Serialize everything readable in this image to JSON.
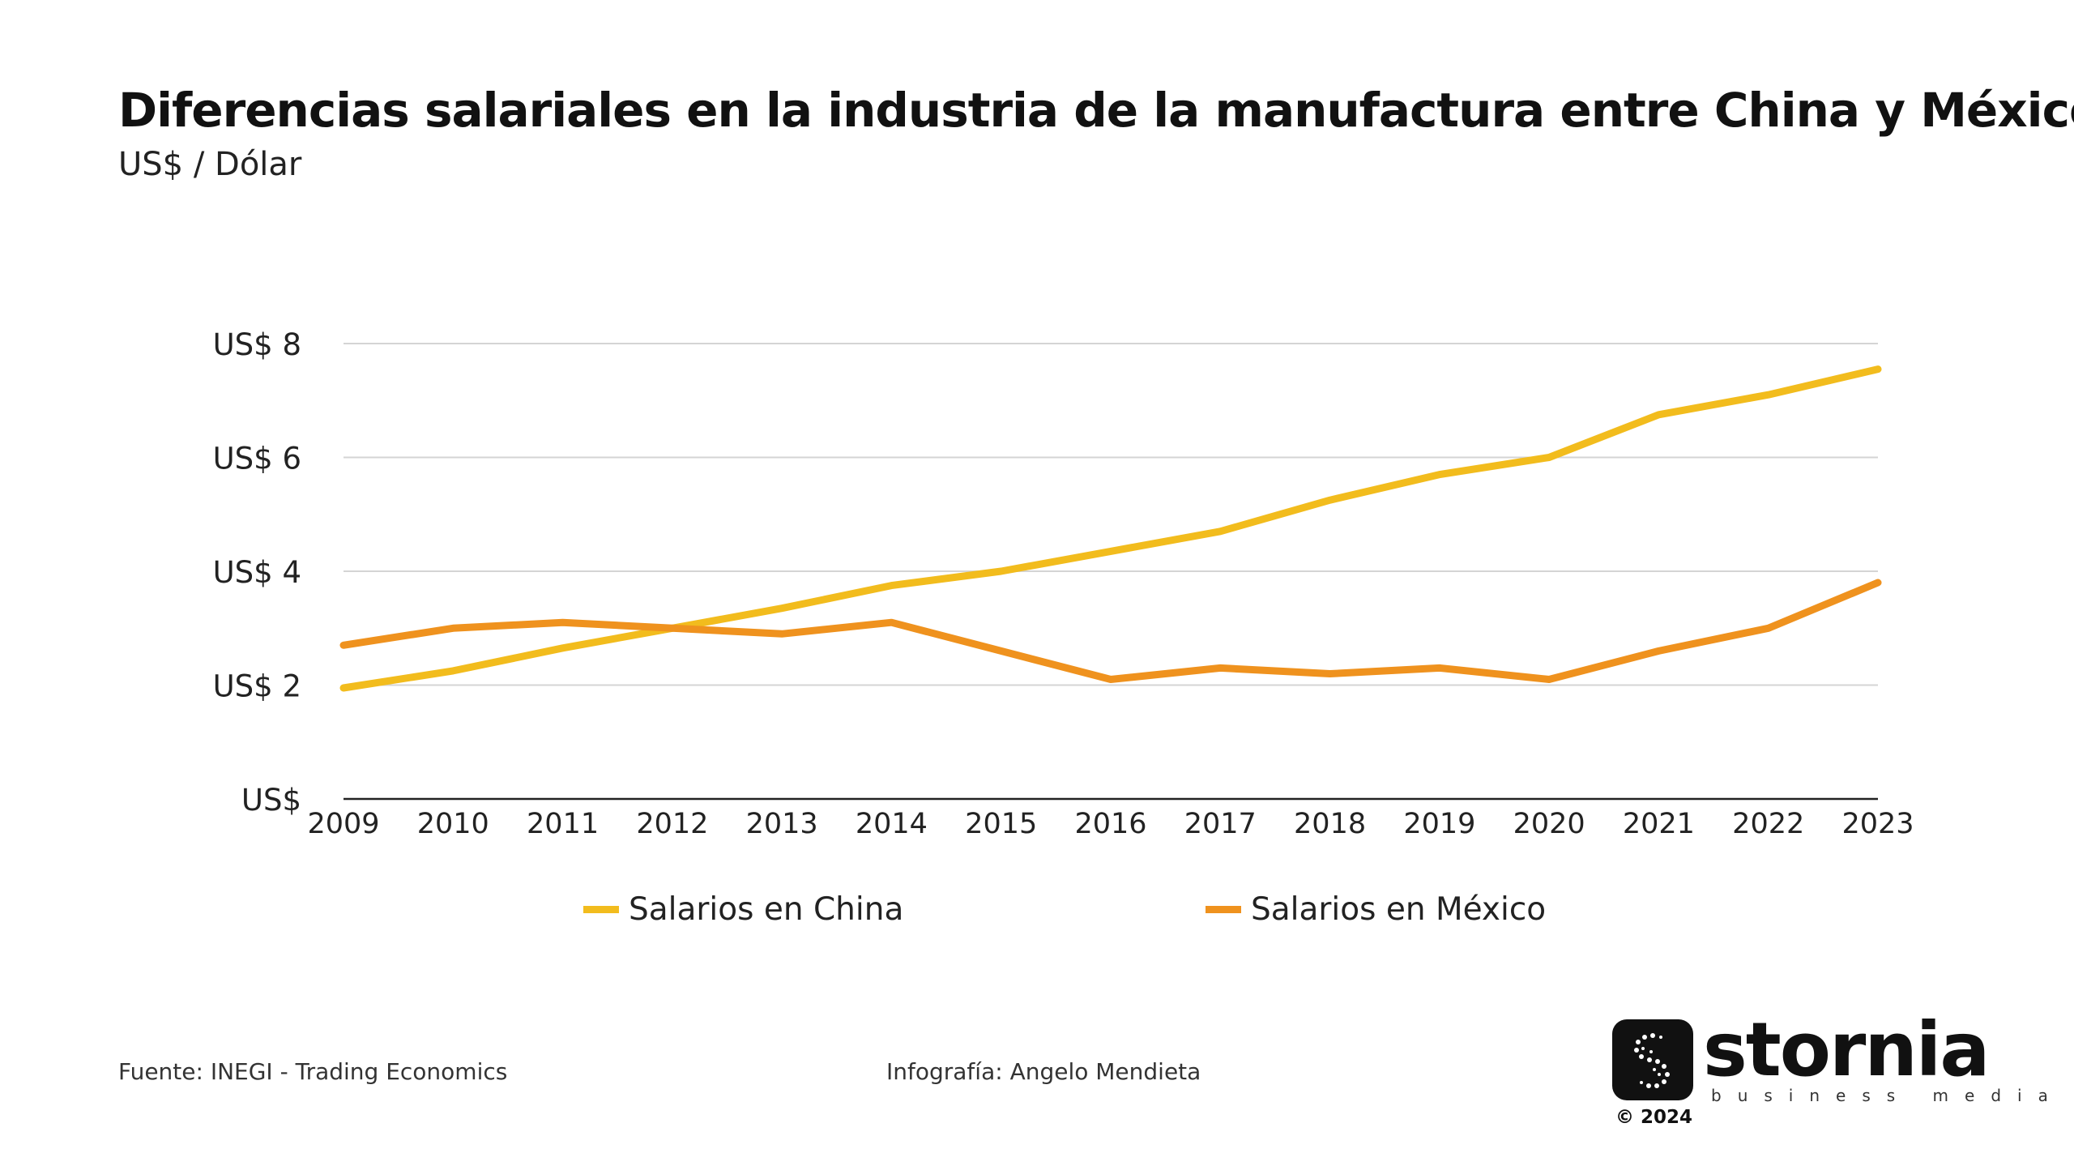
{
  "title": "Diferencias salariales en la industria de la manufactura entre China y México",
  "subtitle": "US$ / Dólar",
  "colors": {
    "china": "#F2BC1D",
    "mexico": "#EF921E",
    "grid": "#d4d4d4",
    "axis": "#222222"
  },
  "chart_data": {
    "type": "line",
    "title": "Diferencias salariales en la industria de la manufactura entre China y México",
    "subtitle": "US$ / Dólar",
    "x": [
      "2009",
      "2010",
      "2011",
      "2012",
      "2013",
      "2014",
      "2015",
      "2016",
      "2017",
      "2018",
      "2019",
      "2020",
      "2021",
      "2022",
      "2023"
    ],
    "yticks": [
      0,
      2,
      4,
      6,
      8
    ],
    "ytick_labels": [
      "US$",
      "US$ 2",
      "US$ 4",
      "US$ 6",
      "US$ 8"
    ],
    "ylim": [
      0,
      8
    ],
    "grid": true,
    "legend_position": "bottom",
    "series": [
      {
        "name": "Salarios en China",
        "color": "#F2BC1D",
        "values": [
          1.95,
          2.25,
          2.65,
          3.0,
          3.35,
          3.75,
          4.0,
          4.35,
          4.7,
          5.25,
          5.7,
          6.0,
          6.75,
          7.1,
          7.55
        ]
      },
      {
        "name": "Salarios en México",
        "color": "#EF921E",
        "values": [
          2.7,
          3.0,
          3.1,
          3.0,
          2.9,
          3.1,
          2.6,
          2.1,
          2.3,
          2.2,
          2.3,
          2.1,
          2.6,
          3.0,
          3.8
        ]
      }
    ]
  },
  "footer": {
    "source": "Fuente: INEGI - Trading Economics",
    "credit": "Infografía: Angelo Mendieta"
  },
  "logo": {
    "name": "stornia",
    "tagline": "business media",
    "copyright": "© 2024"
  }
}
